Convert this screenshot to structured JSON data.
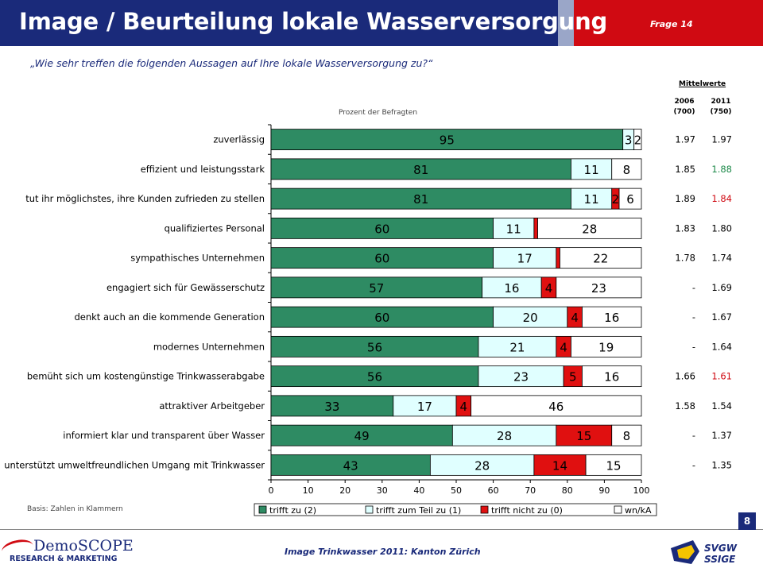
{
  "header": {
    "title": "Image / Beurteilung lokale Wasserversorgung",
    "frage": "Frage 14",
    "colors": {
      "navy": "#1a2a7a",
      "red": "#d00a12"
    }
  },
  "question": "„Wie sehr treffen die folgenden Aussagen auf Ihre lokale Wasserversorgung zu?“",
  "basis": "Basis: Zahlen in Klammern",
  "page_number": "8",
  "footer": "Image Trinkwasser 2011: Kanton Zürich",
  "logos": {
    "left_top": "DemoSCOPE",
    "left_bottom": "RESEARCH & MARKETING",
    "right_top": "SVGW",
    "right_bottom": "SSIGE"
  },
  "chart_data": {
    "type": "bar",
    "orientation": "horizontal-stacked",
    "xlabel": "Prozent der Befragten",
    "xlim": [
      0,
      100
    ],
    "xticks": [
      "0",
      "10",
      "20",
      "30",
      "40",
      "50",
      "60",
      "70",
      "80",
      "90",
      "100"
    ],
    "categories": [
      "zuverlässig",
      "effizient und leistungsstark",
      "tut ihr möglichstes, ihre Kunden zufrieden zu stellen",
      "qualifiziertes Personal",
      "sympathisches Unternehmen",
      "engagiert sich für Gewässerschutz",
      "denkt auch an die kommende Generation",
      "modernes Unternehmen",
      "bemüht sich um kostengünstige Trinkwasserabgabe",
      "attraktiver Arbeitgeber",
      "informiert klar und transparent über Wasser",
      "unterstützt umweltfreundlichen Umgang mit Trinkwasser"
    ],
    "series": [
      {
        "name": "trifft zu (2)",
        "color": "#2e8b63",
        "values": [
          95,
          81,
          81,
          60,
          60,
          57,
          60,
          56,
          56,
          33,
          49,
          43
        ],
        "labels": [
          "95",
          "81",
          "81",
          "60",
          "60",
          "57",
          "60",
          "56",
          "56",
          "33",
          "49",
          "43"
        ]
      },
      {
        "name": "trifft zum Teil zu (1)",
        "color": "#e0ffff",
        "values": [
          3,
          11,
          11,
          11,
          17,
          16,
          20,
          21,
          23,
          17,
          28,
          28
        ],
        "labels": [
          "3",
          "11",
          "11",
          "11",
          "17",
          "16",
          "20",
          "21",
          "23",
          "17",
          "28",
          "28"
        ]
      },
      {
        "name": "trifft nicht zu (0)",
        "color": "#e01010",
        "values": [
          0,
          0,
          2,
          1,
          1,
          4,
          4,
          4,
          5,
          4,
          15,
          14
        ],
        "labels": [
          "",
          "",
          "2",
          "",
          "",
          "4",
          "4",
          "4",
          "5",
          "4",
          "15",
          "14"
        ]
      },
      {
        "name": "wn/kA",
        "color": "#ffffff",
        "values": [
          2,
          8,
          6,
          28,
          22,
          23,
          16,
          19,
          16,
          46,
          8,
          15
        ],
        "labels": [
          "2",
          "8",
          "6",
          "28",
          "22",
          "23",
          "16",
          "19",
          "16",
          "46",
          "8",
          "15"
        ]
      }
    ],
    "legend_position": "bottom",
    "mittelwerte": {
      "title": "Mittelwerte",
      "columns": [
        {
          "year": "2006",
          "n": "(700)"
        },
        {
          "year": "2011",
          "n": "(750)"
        }
      ],
      "rows": [
        {
          "v2006": "1.97",
          "v2011": "1.97",
          "color2011": "#000000"
        },
        {
          "v2006": "1.85",
          "v2011": "1.88",
          "color2011": "#1e8a4a"
        },
        {
          "v2006": "1.89",
          "v2011": "1.84",
          "color2011": "#d00a12"
        },
        {
          "v2006": "1.83",
          "v2011": "1.80",
          "color2011": "#000000"
        },
        {
          "v2006": "1.78",
          "v2011": "1.74",
          "color2011": "#000000"
        },
        {
          "v2006": "-",
          "v2011": "1.69",
          "color2011": "#000000"
        },
        {
          "v2006": "-",
          "v2011": "1.67",
          "color2011": "#000000"
        },
        {
          "v2006": "-",
          "v2011": "1.64",
          "color2011": "#000000"
        },
        {
          "v2006": "1.66",
          "v2011": "1.61",
          "color2011": "#d00a12"
        },
        {
          "v2006": "1.58",
          "v2011": "1.54",
          "color2011": "#000000"
        },
        {
          "v2006": "-",
          "v2011": "1.37",
          "color2011": "#000000"
        },
        {
          "v2006": "-",
          "v2011": "1.35",
          "color2011": "#000000"
        }
      ]
    }
  }
}
